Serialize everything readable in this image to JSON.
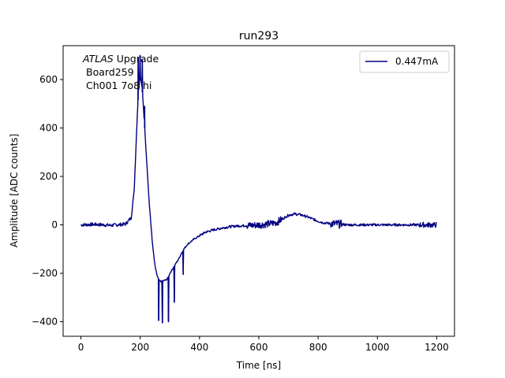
{
  "chart_data": {
    "type": "line",
    "title": "run293",
    "xlabel": "Time [ns]",
    "ylabel": "Amplitude [ADC counts]",
    "xlim": [
      -60,
      1260
    ],
    "ylim": [
      -460,
      740
    ],
    "xticks": [
      0,
      200,
      400,
      600,
      800,
      1000,
      1200
    ],
    "yticks": [
      -400,
      -200,
      0,
      200,
      400,
      600
    ],
    "xtick_labels": [
      "0",
      "200",
      "400",
      "600",
      "800",
      "1000",
      "1200"
    ],
    "ytick_labels": [
      "−400",
      "−200",
      "0",
      "200",
      "400",
      "600"
    ],
    "grid": false,
    "legend_position": "top-right",
    "annotations": {
      "line1_italic": "ATLAS",
      "line1_rest": " Upgrade",
      "line2": "Board259",
      "line3": "Ch001 7o8 hi"
    },
    "series": [
      {
        "name": "0.447mA",
        "color": "#000080",
        "x": [
          0,
          50,
          100,
          150,
          170,
          180,
          185,
          190,
          195,
          200,
          205,
          210,
          215,
          220,
          225,
          230,
          235,
          240,
          245,
          250,
          255,
          260,
          265,
          270,
          275,
          280,
          285,
          290,
          295,
          300,
          310,
          320,
          330,
          340,
          350,
          360,
          380,
          400,
          420,
          450,
          480,
          500,
          520,
          550,
          580,
          600,
          620,
          640,
          660,
          680,
          700,
          720,
          740,
          760,
          780,
          800,
          820,
          850,
          870,
          900,
          950,
          1000,
          1050,
          1100,
          1150,
          1200
        ],
        "y": [
          0,
          2,
          -2,
          3,
          30,
          150,
          300,
          450,
          560,
          620,
          580,
          500,
          400,
          300,
          200,
          100,
          20,
          -60,
          -120,
          -170,
          -200,
          -220,
          -230,
          -235,
          -232,
          -230,
          -228,
          -225,
          -215,
          -200,
          -180,
          -160,
          -140,
          -115,
          -95,
          -80,
          -60,
          -45,
          -30,
          -20,
          -12,
          -8,
          -5,
          -3,
          -2,
          0,
          2,
          5,
          10,
          25,
          40,
          45,
          42,
          35,
          25,
          15,
          8,
          5,
          3,
          0,
          0,
          0,
          0,
          0,
          0,
          0
        ]
      }
    ],
    "spikes": [
      {
        "x": 193,
        "y": 690
      },
      {
        "x": 200,
        "y": 700
      },
      {
        "x": 207,
        "y": 680
      },
      {
        "x": 215,
        "y": 490
      },
      {
        "x": 262,
        "y": -395
      },
      {
        "x": 275,
        "y": -405
      },
      {
        "x": 295,
        "y": -400
      },
      {
        "x": 315,
        "y": -320
      },
      {
        "x": 345,
        "y": -205
      }
    ]
  }
}
